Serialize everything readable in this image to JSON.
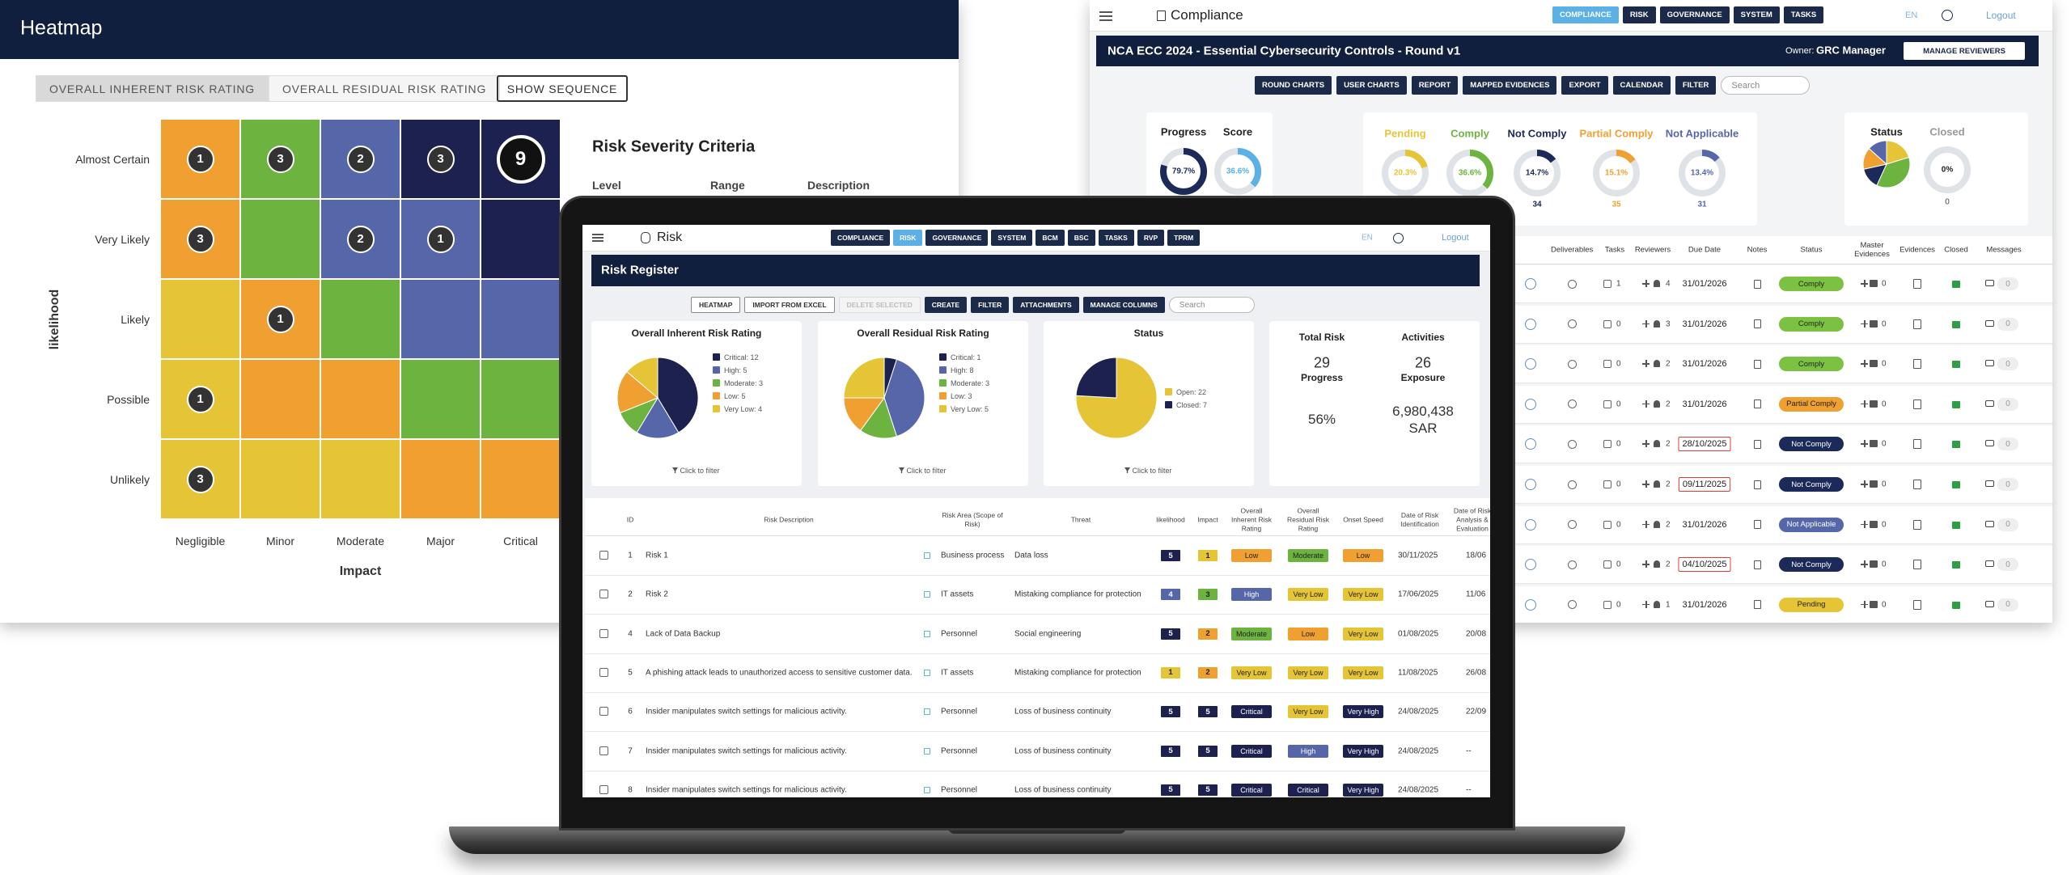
{
  "heatmap": {
    "title": "Heatmap",
    "tabs": [
      "OVERALL INHERENT RISK RATING",
      "OVERALL RESIDUAL RISK RATING"
    ],
    "active_tab": 0,
    "sequence_button": "SHOW SEQUENCE",
    "y_axis_label": "likelihood",
    "x_axis_label": "Impact",
    "rows": [
      "Almost Certain",
      "Very Likely",
      "Likely",
      "Possible",
      "Unlikely"
    ],
    "columns": [
      "Negligible",
      "Minor",
      "Moderate",
      "Major",
      "Critical"
    ],
    "counts": [
      [
        1,
        3,
        2,
        3,
        9
      ],
      [
        3,
        null,
        2,
        1,
        null
      ],
      [
        null,
        1,
        null,
        null,
        null
      ],
      [
        1,
        null,
        null,
        null,
        null
      ],
      [
        3,
        null,
        null,
        null,
        null
      ]
    ],
    "cell_colors": [
      [
        "#f0a030",
        "#6db33f",
        "#5567a8",
        "#1c2150",
        "#1c2150"
      ],
      [
        "#f0a030",
        "#6db33f",
        "#5567a8",
        "#5567a8",
        "#1c2150"
      ],
      [
        "#e5c436",
        "#f0a030",
        "#6db33f",
        "#5567a8",
        "#5567a8"
      ],
      [
        "#e5c436",
        "#f0a030",
        "#f0a030",
        "#6db33f",
        "#6db33f"
      ],
      [
        "#e5c436",
        "#e5c436",
        "#e5c436",
        "#f0a030",
        "#f0a030"
      ]
    ],
    "selected_cell": [
      0,
      4
    ],
    "criteria": {
      "title": "Risk Severity Criteria",
      "headers": [
        "Level",
        "Range",
        "Description"
      ]
    }
  },
  "compliance": {
    "app_title": "Compliance",
    "nav": [
      "COMPLIANCE",
      "RISK",
      "GOVERNANCE",
      "SYSTEM",
      "TASKS"
    ],
    "active_nav": 0,
    "language": "EN",
    "logout": "Logout",
    "banner_title": "NCA ECC 2024 - Essential Cybersecurity Controls - Round v1",
    "owner_label": "Owner:",
    "owner": "GRC Manager",
    "manage_button": "MANAGE REVIEWERS",
    "toolbar": [
      "ROUND CHARTS",
      "USER CHARTS",
      "REPORT",
      "MAPPED EVIDENCES",
      "EXPORT",
      "CALENDAR",
      "FILTER"
    ],
    "search_placeholder": "Search",
    "summary": [
      {
        "label": "Progress",
        "value": 79.7,
        "value_label": "79.7%",
        "color": "#1c2a5a"
      },
      {
        "label": "Score",
        "value": 36.6,
        "value_label": "36.6%",
        "color": "#5bb0e6"
      }
    ],
    "breakdown": [
      {
        "label": "Pending",
        "value": 20.3,
        "value_label": "20.3%",
        "color": "#e5c436"
      },
      {
        "label": "Comply",
        "value": 36.6,
        "value_label": "36.6%",
        "color": "#6db33f"
      },
      {
        "label": "Not Comply",
        "value": 14.7,
        "value_label": "14.7%",
        "count": 34,
        "color": "#1c2a5a"
      },
      {
        "label": "Partial Comply",
        "value": 15.1,
        "value_label": "15.1%",
        "count": 35,
        "color": "#f0a030"
      },
      {
        "label": "Not Applicable",
        "value": 13.4,
        "value_label": "13.4%",
        "count": 31,
        "color": "#5567a8"
      }
    ],
    "status_title": "Status",
    "closed": {
      "label": "Closed",
      "value": 0,
      "value_label": "0%",
      "count": 0,
      "color": "#1c2a5a"
    },
    "table": {
      "headers": [
        "Deliverables",
        "Tasks",
        "Reviewers",
        "Due Date",
        "Notes",
        "Status",
        "Master Evidences",
        "Evidences",
        "Closed",
        "Messages"
      ],
      "rows": [
        {
          "tasks": 1,
          "reviewers": 4,
          "due_date": "31/01/2026",
          "overdue": false,
          "status": "Comply",
          "master_evidences": 0,
          "messages": 0
        },
        {
          "tasks": 0,
          "reviewers": 3,
          "due_date": "31/01/2026",
          "overdue": false,
          "status": "Comply",
          "master_evidences": 0,
          "messages": 0
        },
        {
          "tasks": 0,
          "reviewers": 2,
          "due_date": "31/01/2026",
          "overdue": false,
          "status": "Comply",
          "master_evidences": 0,
          "messages": 0
        },
        {
          "tasks": 0,
          "reviewers": 2,
          "due_date": "31/01/2026",
          "overdue": false,
          "status": "Partial Comply",
          "master_evidences": 0,
          "messages": 0
        },
        {
          "tasks": 0,
          "reviewers": 2,
          "due_date": "28/10/2025",
          "overdue": true,
          "status": "Not Comply",
          "master_evidences": 0,
          "messages": 0
        },
        {
          "tasks": 0,
          "reviewers": 2,
          "due_date": "09/11/2025",
          "overdue": true,
          "status": "Not Comply",
          "master_evidences": 0,
          "messages": 0
        },
        {
          "tasks": 0,
          "reviewers": 2,
          "due_date": "31/01/2026",
          "overdue": false,
          "status": "Not Applicable",
          "master_evidences": 0,
          "messages": 0
        },
        {
          "tasks": 0,
          "reviewers": 2,
          "due_date": "04/10/2025",
          "overdue": true,
          "status": "Not Comply",
          "master_evidences": 0,
          "messages": 0
        },
        {
          "tasks": 0,
          "reviewers": 1,
          "due_date": "31/01/2026",
          "overdue": false,
          "status": "Pending",
          "master_evidences": 0,
          "messages": 0
        }
      ]
    },
    "status_colors": {
      "Comply": "#7cc242",
      "Partial Comply": "#f0a030",
      "Not Comply": "#1c2a5a",
      "Not Applicable": "#5567a8",
      "Pending": "#e5c436"
    }
  },
  "risk": {
    "app_title": "Risk",
    "nav": [
      "COMPLIANCE",
      "RISK",
      "GOVERNANCE",
      "SYSTEM",
      "BCM",
      "BSC",
      "TASKS",
      "RVP",
      "TPRM"
    ],
    "active_nav": 1,
    "language": "EN",
    "logout": "Logout",
    "banner_title": "Risk Register",
    "toolbar": [
      {
        "label": "HEATMAP",
        "style": "outline"
      },
      {
        "label": "IMPORT FROM EXCEL",
        "style": "outline"
      },
      {
        "label": "DELETE SELECTED",
        "style": "disabled"
      },
      {
        "label": "CREATE",
        "style": "filled"
      },
      {
        "label": "FILTER",
        "style": "filled"
      },
      {
        "label": "ATTACHMENTS",
        "style": "filled"
      },
      {
        "label": "MANAGE COLUMNS",
        "style": "filled"
      }
    ],
    "search_placeholder": "Search",
    "charts": [
      {
        "type": "pie",
        "title": "Overall Inherent Risk Rating",
        "values": [
          12,
          5,
          3,
          5,
          4
        ],
        "value_labels": [
          "Critical: 12",
          "High: 5",
          "Moderate: 3",
          "Low: 5",
          "Very Low: 4"
        ],
        "colors": [
          "#1c2150",
          "#5567a8",
          "#6db33f",
          "#f0a030",
          "#e5c436"
        ],
        "footer": "Click to filter"
      },
      {
        "type": "pie",
        "title": "Overall Residual Risk Rating",
        "values": [
          1,
          8,
          3,
          3,
          5
        ],
        "value_labels": [
          "Critical: 1",
          "High: 8",
          "Moderate: 3",
          "Low: 3",
          "Very Low: 5"
        ],
        "colors": [
          "#1c2150",
          "#5567a8",
          "#6db33f",
          "#f0a030",
          "#e5c436"
        ],
        "footer": "Click to filter"
      },
      {
        "type": "pie",
        "title": "Status",
        "values": [
          22,
          7
        ],
        "value_labels": [
          "Open: 22",
          "Closed: 7"
        ],
        "colors": [
          "#e5c436",
          "#1c2150"
        ],
        "footer": "Click to filter"
      }
    ],
    "kpis": [
      {
        "label": "Total Risk",
        "value": "29"
      },
      {
        "label": "Activities",
        "value": "26"
      },
      {
        "label": "Progress",
        "value": "56%"
      },
      {
        "label": "Exposure",
        "value": "6,980,438 SAR"
      }
    ],
    "table": {
      "headers": [
        "ID",
        "Risk Description",
        "Risk Area (Scope of Risk)",
        "Threat",
        "likelihood",
        "Impact",
        "Overall Inherent Risk Rating",
        "Overall Residual Risk Rating",
        "Onset Speed",
        "Date of Risk Identification",
        "Date of Risk Analysis & Evaluation"
      ],
      "rows": [
        [
          1,
          "Risk 1",
          "Business process",
          "Data loss",
          5,
          1,
          "Low",
          "Moderate",
          "Low",
          "30/11/2025",
          "18/06"
        ],
        [
          2,
          "Risk 2",
          "IT assets",
          "Mistaking compliance for protection",
          4,
          3,
          "High",
          "Very Low",
          "Very Low",
          "17/06/2025",
          "11/06"
        ],
        [
          4,
          "Lack of Data Backup",
          "Personnel",
          "Social engineering",
          5,
          2,
          "Moderate",
          "Low",
          "Very Low",
          "01/08/2025",
          "20/08"
        ],
        [
          5,
          "A phishing attack leads to unauthorized access to sensitive customer data.",
          "IT assets",
          "Mistaking compliance for protection",
          1,
          2,
          "Very Low",
          "Very Low",
          "Very Low",
          "11/08/2025",
          "26/08"
        ],
        [
          6,
          "Insider manipulates switch settings for malicious activity.",
          "Personnel",
          "Loss of business continuity",
          5,
          5,
          "Critical",
          "Very Low",
          "Very High",
          "24/08/2025",
          "22/09"
        ],
        [
          7,
          "Insider manipulates switch settings for malicious activity.",
          "Personnel",
          "Loss of business continuity",
          5,
          5,
          "Critical",
          "High",
          "Very High",
          "24/08/2025",
          "--"
        ],
        [
          8,
          "Insider manipulates switch settings for malicious activity.",
          "Personnel",
          "Loss of business continuity",
          5,
          5,
          "Critical",
          "Critical",
          "Very High",
          "24/08/2025",
          "--"
        ]
      ]
    },
    "rating_colors": {
      "Low": "#f0a030",
      "Moderate": "#6db33f",
      "High": "#5567a8",
      "Very Low": "#e5c436",
      "Critical": "#1c2150",
      "Very High": "#1c2150"
    },
    "score_colors": [
      "#e5c436",
      "#f0a030",
      "#6db33f",
      "#5567a8",
      "#1c2150"
    ]
  }
}
